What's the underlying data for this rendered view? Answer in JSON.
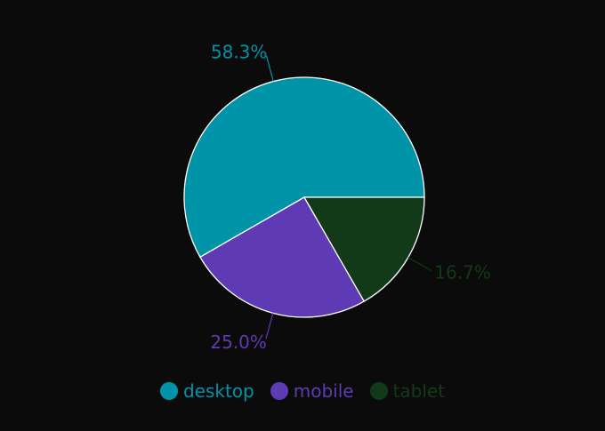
{
  "chart_data": {
    "type": "pie",
    "categories": [
      "desktop",
      "mobile",
      "tablet"
    ],
    "values": [
      58.3,
      25.0,
      16.7
    ],
    "labels": [
      "58.3%",
      "25.0%",
      "16.7%"
    ],
    "colors": [
      "#0094a8",
      "#5f3ab5",
      "#123a18"
    ],
    "legend_position": "bottom"
  },
  "background": "#0b0b0b"
}
